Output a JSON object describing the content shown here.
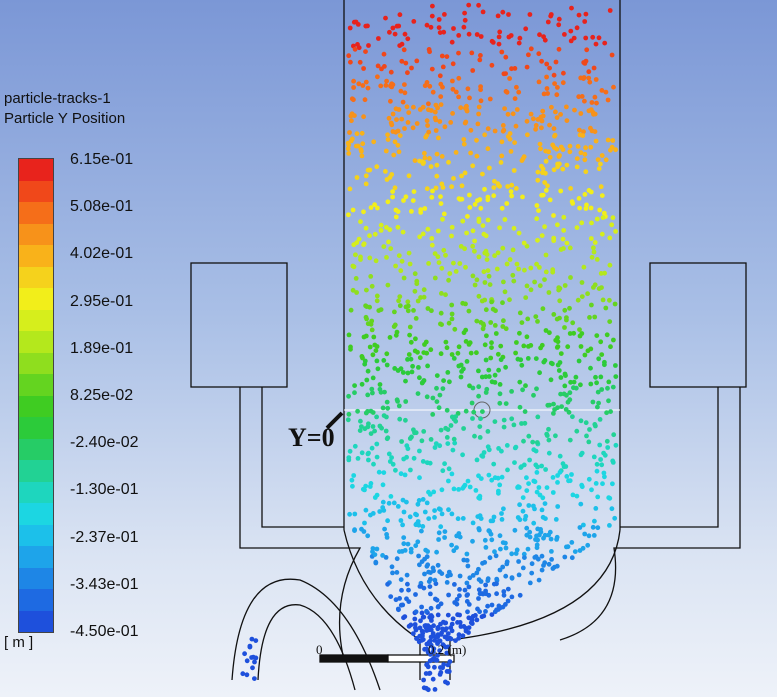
{
  "legend": {
    "title_line1": "particle-tracks-1",
    "title_line2": "Particle Y Position",
    "unit": "[ m ]",
    "ticks": [
      "6.15e-01",
      "5.08e-01",
      "4.02e-01",
      "2.95e-01",
      "1.89e-01",
      "8.25e-02",
      "-2.40e-02",
      "-1.30e-01",
      "-2.37e-01",
      "-3.43e-01",
      "-4.50e-01"
    ],
    "range": [
      -0.45,
      0.615
    ],
    "colors": [
      "#e8231c",
      "#f0481a",
      "#f56e19",
      "#f7921a",
      "#f9b21a",
      "#f5d21c",
      "#f2ee1a",
      "#d6ee1c",
      "#b4e81c",
      "#8fde1e",
      "#64d420",
      "#3fcc22",
      "#2ccb3a",
      "#26cc66",
      "#22d294",
      "#1ed6be",
      "#1cd6e2",
      "#1cc0ea",
      "#1ea4ea",
      "#1e86e6",
      "#1e6ae2",
      "#1e50dc"
    ]
  },
  "annotation": {
    "origin_label": "Y=0"
  },
  "scale_bar": {
    "start_label": "0",
    "end_label": "0.2 (m)"
  }
}
